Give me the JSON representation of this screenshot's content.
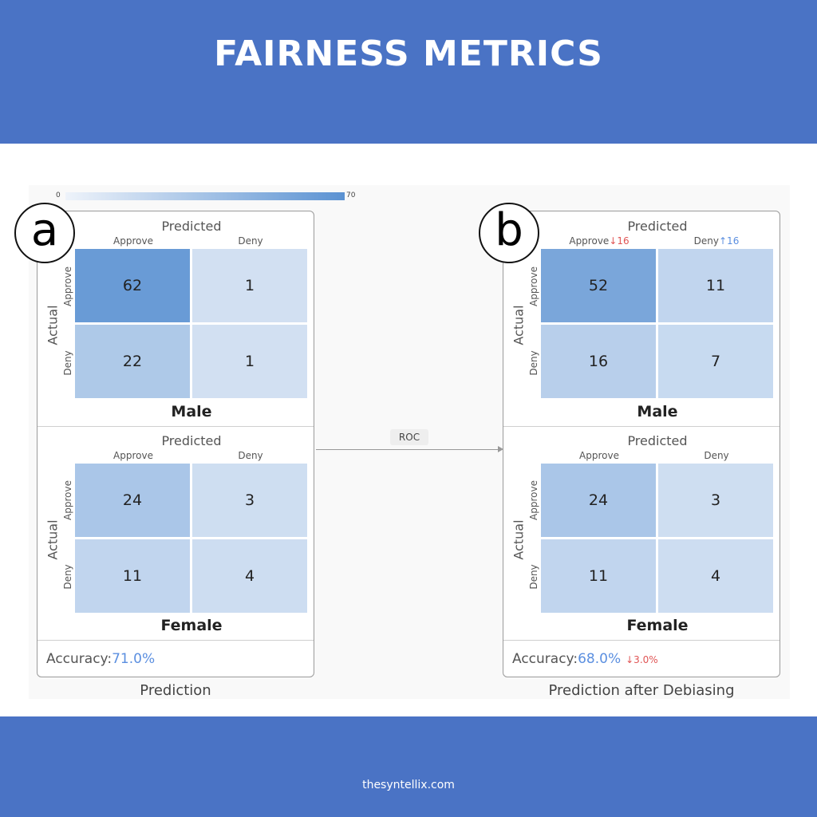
{
  "header": {
    "title": "FAIRNESS METRICS"
  },
  "footer": {
    "site": "thesyntellix.com"
  },
  "colors": {
    "band": "#4a73c5",
    "accuracy_value": "#5b8fe0",
    "decrease": "#e05555",
    "increase": "#5b8fe0"
  },
  "scale": {
    "min": "0",
    "max": "70"
  },
  "ops": {
    "roc": "ROC"
  },
  "panel_a": {
    "badge": "a",
    "caption": "Prediction",
    "accuracy_label": "Accuracy:",
    "accuracy_value": "71.0%",
    "male": {
      "name": "Male",
      "predicted": "Predicted",
      "actual": "Actual",
      "col_approve": "Approve",
      "col_deny": "Deny",
      "row_approve": "Approve",
      "row_deny": "Deny",
      "tp": 62,
      "fn": 1,
      "fp": 22,
      "tn": 1
    },
    "female": {
      "name": "Female",
      "predicted": "Predicted",
      "actual": "Actual",
      "col_approve": "Approve",
      "col_deny": "Deny",
      "row_approve": "Approve",
      "row_deny": "Deny",
      "tp": 24,
      "fn": 3,
      "fp": 11,
      "tn": 4
    }
  },
  "panel_b": {
    "badge": "b",
    "caption": "Prediction after Debiasing",
    "accuracy_label": "Accuracy:",
    "accuracy_value": "68.0%",
    "accuracy_delta": "↓3.0%",
    "male": {
      "name": "Male",
      "predicted": "Predicted",
      "actual": "Actual",
      "col_approve": "Approve",
      "col_approve_delta": "↓16",
      "col_deny": "Deny",
      "col_deny_delta": "↑16",
      "row_approve": "Approve",
      "row_deny": "Deny",
      "tp": 52,
      "fn": 11,
      "fp": 16,
      "tn": 7
    },
    "female": {
      "name": "Female",
      "predicted": "Predicted",
      "actual": "Actual",
      "col_approve": "Approve",
      "col_deny": "Deny",
      "row_approve": "Approve",
      "row_deny": "Deny",
      "tp": 24,
      "fn": 3,
      "fp": 11,
      "tn": 4
    }
  }
}
